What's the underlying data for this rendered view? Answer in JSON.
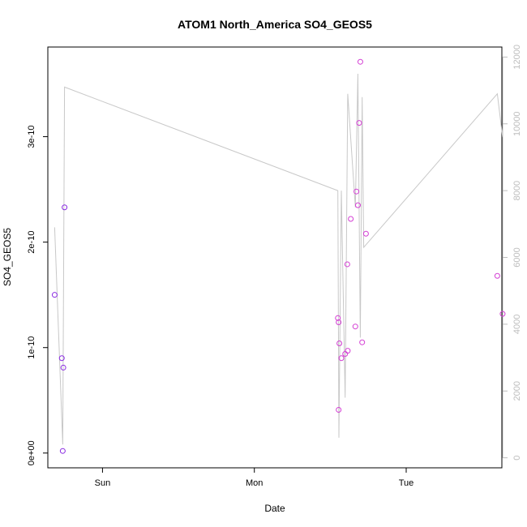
{
  "chart_data": {
    "type": "scatter",
    "title": "ATOM1 North_America SO4_GEOS5",
    "xlabel": "Date",
    "ylabel": "SO4_GEOS5",
    "x_ticks": [
      "Sun",
      "Mon",
      "Tue"
    ],
    "y_ticks": [
      {
        "value": 0,
        "label": "0e+00"
      },
      {
        "value": 1e-10,
        "label": "1e-10"
      },
      {
        "value": 2e-10,
        "label": "2e-10"
      },
      {
        "value": 3e-10,
        "label": "3e-10"
      }
    ],
    "y2_ticks": [
      0,
      2000,
      4000,
      6000,
      8000,
      10000,
      12000
    ],
    "xlim": [
      -0.36,
      2.63
    ],
    "ylim": [
      -1.4e-11,
      3.85e-10
    ],
    "y2lim": [
      -300,
      12300
    ],
    "grid": false,
    "points": [
      {
        "x": -0.315,
        "y": 1.5e-10,
        "color": "#8a2be2"
      },
      {
        "x": -0.268,
        "y": 9e-11,
        "color": "#8a2be2"
      },
      {
        "x": -0.258,
        "y": 8.1e-11,
        "color": "#8a2be2"
      },
      {
        "x": -0.262,
        "y": 2e-12,
        "color": "#8a2be2"
      },
      {
        "x": -0.25,
        "y": 2.33e-10,
        "color": "#8a2be2"
      },
      {
        "x": 1.55,
        "y": 1.28e-10,
        "color": "#d43fd4"
      },
      {
        "x": 1.555,
        "y": 1.24e-10,
        "color": "#d43fd4"
      },
      {
        "x": 1.56,
        "y": 1.04e-10,
        "color": "#d43fd4"
      },
      {
        "x": 1.555,
        "y": 4.1e-11,
        "color": "#d43fd4"
      },
      {
        "x": 1.573,
        "y": 9e-11,
        "color": "#d43fd4"
      },
      {
        "x": 1.598,
        "y": 9.4e-11,
        "color": "#d43fd4"
      },
      {
        "x": 1.615,
        "y": 9.7e-11,
        "color": "#d43fd4"
      },
      {
        "x": 1.612,
        "y": 1.79e-10,
        "color": "#d43fd4"
      },
      {
        "x": 1.635,
        "y": 2.22e-10,
        "color": "#d43fd4"
      },
      {
        "x": 1.665,
        "y": 1.2e-10,
        "color": "#d43fd4"
      },
      {
        "x": 1.672,
        "y": 2.48e-10,
        "color": "#d43fd4"
      },
      {
        "x": 1.682,
        "y": 2.35e-10,
        "color": "#d43fd4"
      },
      {
        "x": 1.69,
        "y": 3.13e-10,
        "color": "#d43fd4"
      },
      {
        "x": 1.698,
        "y": 3.71e-10,
        "color": "#d43fd4"
      },
      {
        "x": 1.71,
        "y": 1.05e-10,
        "color": "#d43fd4"
      },
      {
        "x": 1.735,
        "y": 2.08e-10,
        "color": "#d43fd4"
      },
      {
        "x": 2.6,
        "y": 1.68e-10,
        "color": "#d43fd4"
      },
      {
        "x": 2.635,
        "y": 1.32e-10,
        "color": "#d43fd4"
      }
    ],
    "line_series": {
      "color": "#c8c8c8",
      "axis": "right",
      "x": [
        -0.315,
        -0.262,
        -0.25,
        1.55,
        1.557,
        1.573,
        1.598,
        1.615,
        1.665,
        1.682,
        1.698,
        1.71,
        1.72,
        2.6,
        2.635
      ],
      "y": [
        6900,
        400,
        11100,
        8000,
        600,
        8000,
        1800,
        10900,
        7500,
        11500,
        3600,
        10800,
        6300,
        10900,
        9600
      ]
    }
  }
}
